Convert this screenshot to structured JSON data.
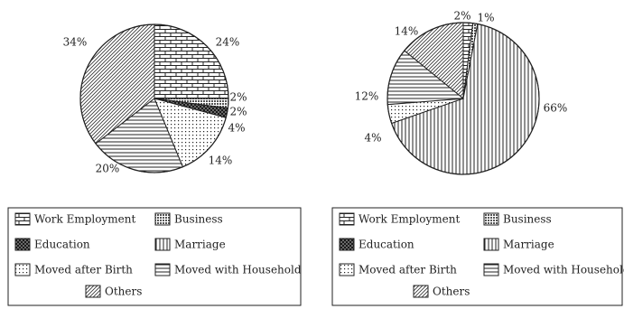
{
  "legend_swatches": [
    {
      "pattern": "brick",
      "label": "Work Employment"
    },
    {
      "pattern": "dotgrid",
      "label": "Business"
    },
    {
      "pattern": "dense",
      "label": "Education"
    },
    {
      "pattern": "vertical",
      "label": "Marriage"
    },
    {
      "pattern": "dotted",
      "label": "Moved after Birth"
    },
    {
      "pattern": "horizontal",
      "label": "Moved with Household"
    },
    {
      "pattern": "diagonal",
      "label": "Others"
    }
  ],
  "colors": {
    "ink": "#222222",
    "background": "#ffffff"
  },
  "chart_data": [
    {
      "type": "pie",
      "title": "",
      "categories": [
        "Work Employment",
        "Business",
        "Education",
        "Moved after Birth",
        "Moved with Household",
        "Others"
      ],
      "values": [
        24,
        2,
        2,
        14,
        20,
        34
      ],
      "value_labels": [
        "24%",
        "2%",
        "2%",
        "14%",
        "20%",
        "34%"
      ],
      "extra_label": "4%",
      "legend_position": "bottom"
    },
    {
      "type": "pie",
      "title": "",
      "categories": [
        "Work Employment",
        "Business",
        "Marriage",
        "Moved after Birth",
        "Moved with Household",
        "Others"
      ],
      "values": [
        2,
        1,
        66,
        4,
        12,
        14
      ],
      "value_labels": [
        "2%",
        "1%",
        "66%",
        "4%",
        "12%",
        "14%"
      ],
      "legend_position": "bottom"
    }
  ]
}
